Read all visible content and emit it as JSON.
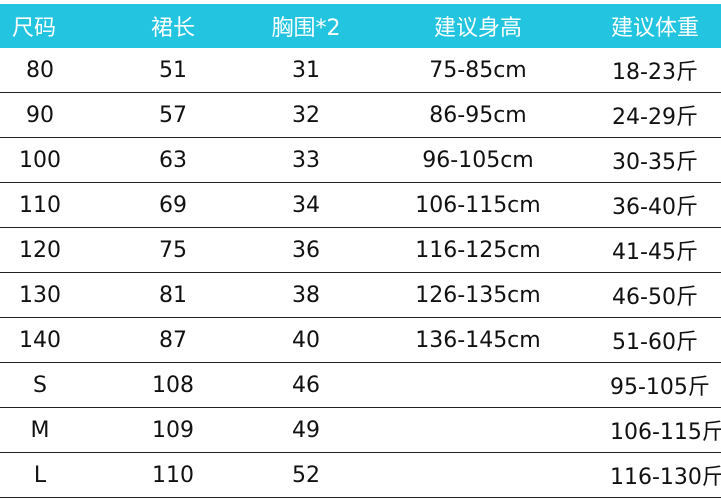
{
  "header_color": "#22c4e0",
  "headers": [
    "尺码",
    "裙长",
    "胸围*2",
    "建议身高",
    "建议体重"
  ],
  "rows": [
    [
      "80",
      "51",
      "31",
      "75-85cm",
      "18-23斤"
    ],
    [
      "90",
      "57",
      "32",
      "86-95cm",
      "24-29斤"
    ],
    [
      "100",
      "63",
      "33",
      "96-105cm",
      "30-35斤"
    ],
    [
      "110",
      "69",
      "34",
      "106-115cm",
      "36-40斤"
    ],
    [
      "120",
      "75",
      "36",
      "116-125cm",
      "41-45斤"
    ],
    [
      "130",
      "81",
      "38",
      "126-135cm",
      "46-50斤"
    ],
    [
      "140",
      "87",
      "40",
      "136-145cm",
      "51-60斤"
    ],
    [
      "S",
      "108",
      "46",
      "",
      "95-105斤"
    ],
    [
      "M",
      "109",
      "49",
      "",
      "106-115斤"
    ],
    [
      "L",
      "110",
      "52",
      "",
      "116-130斤"
    ]
  ]
}
